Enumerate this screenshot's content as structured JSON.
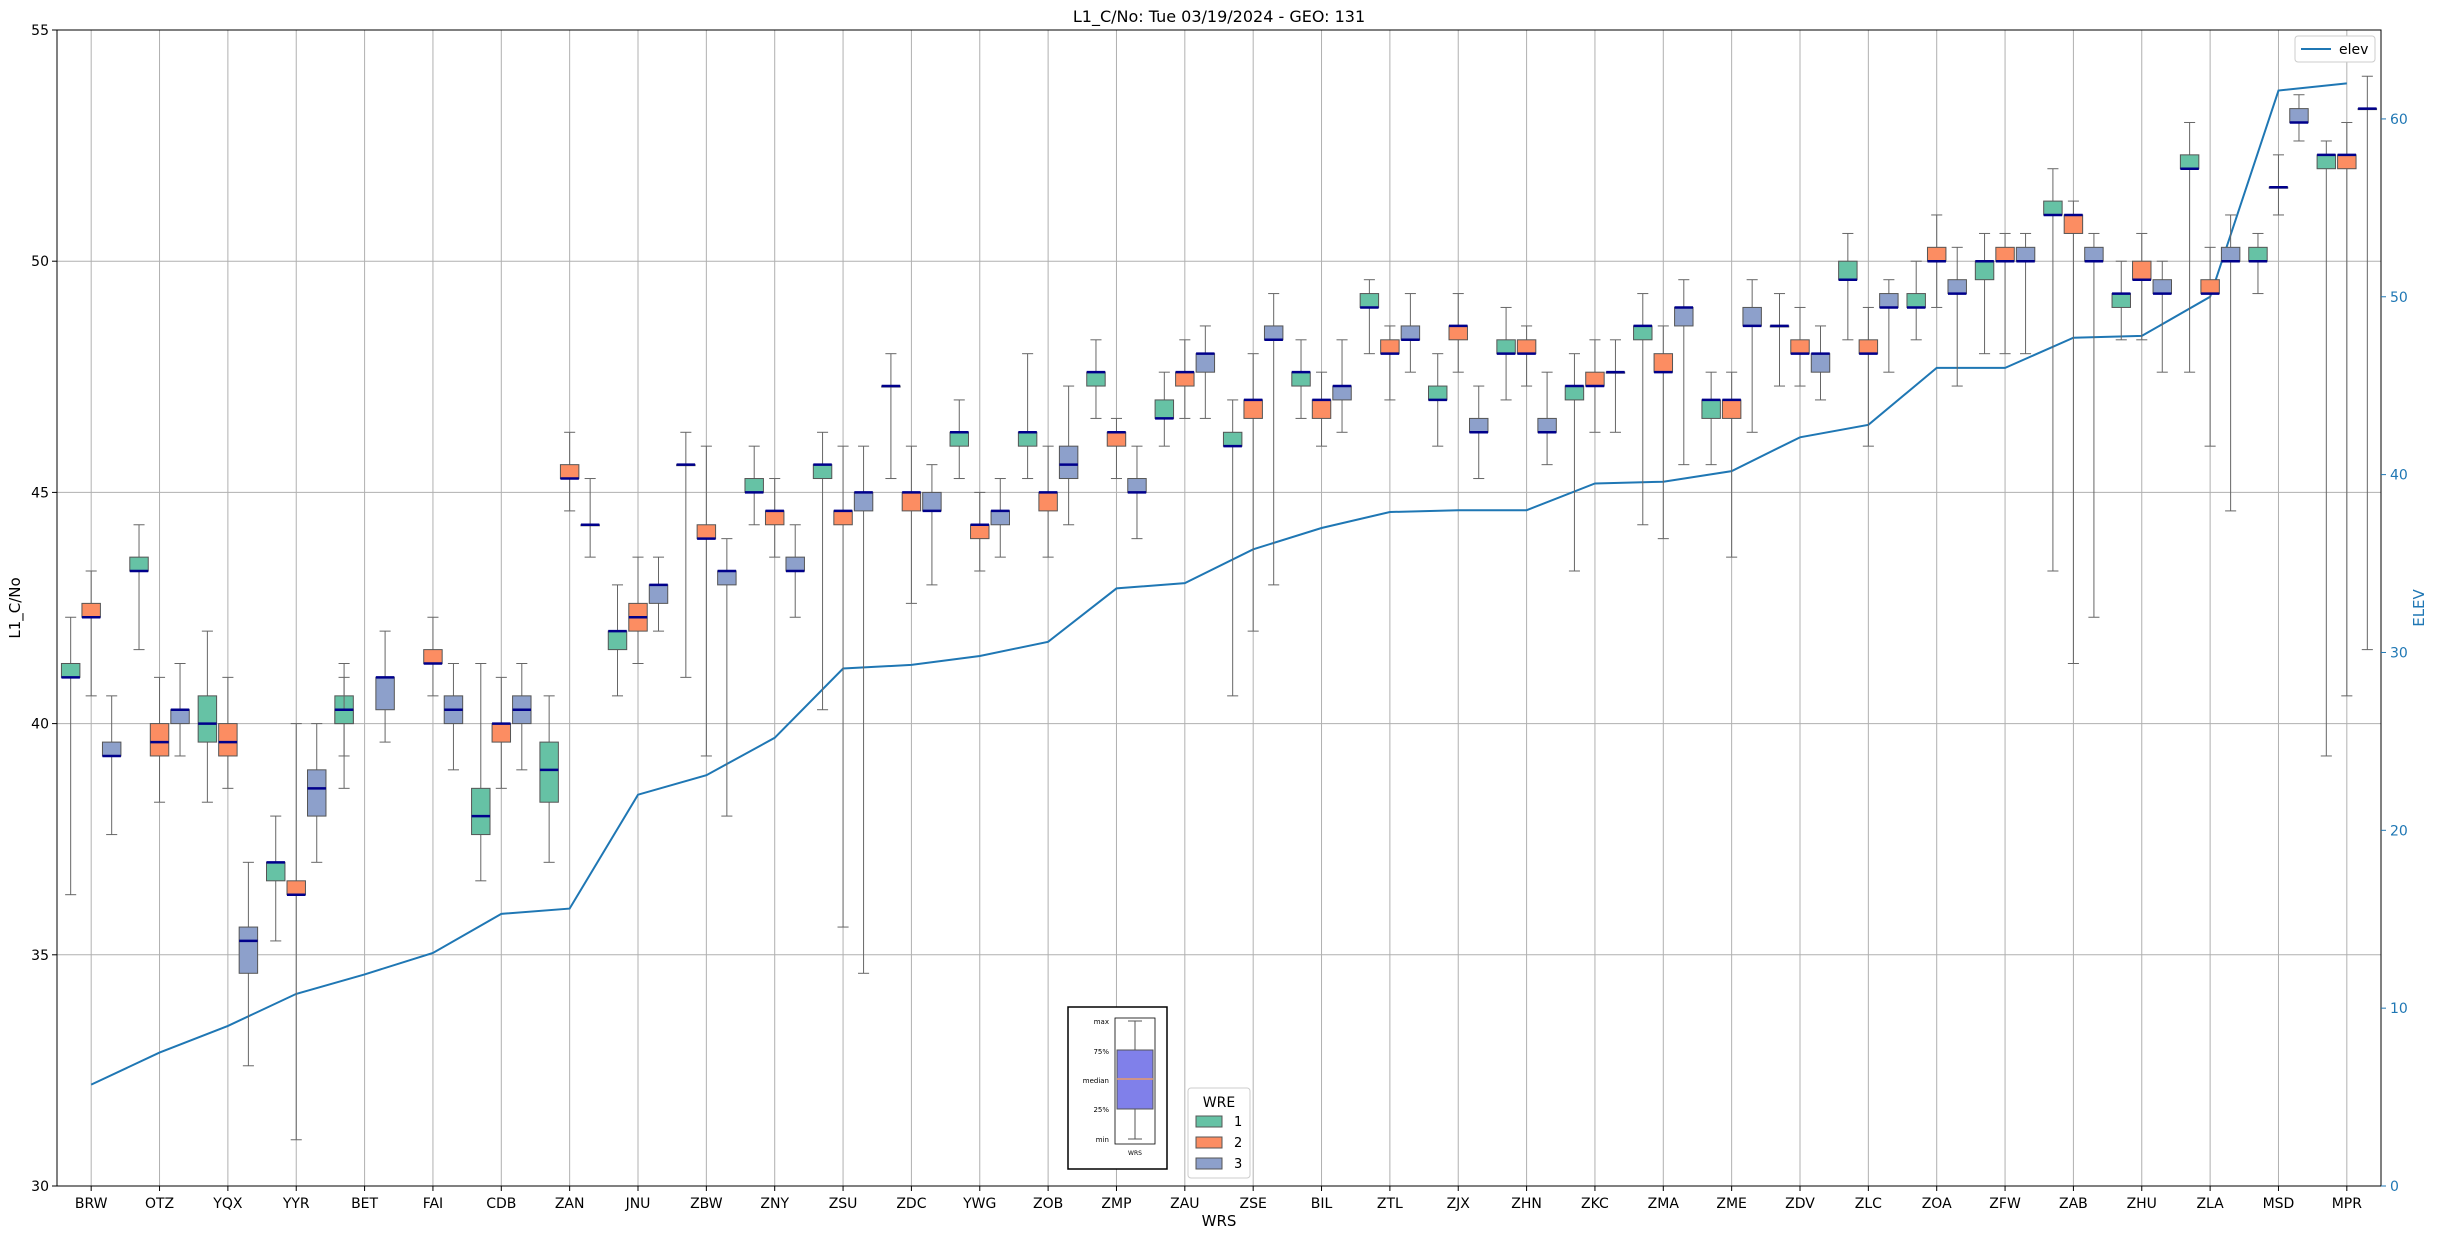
{
  "chart_data": {
    "type": "box",
    "title": "L1_C/No: Tue 03/19/2024 - GEO: 131",
    "xlabel": "WRS",
    "ylabel": "L1_C/No",
    "ylabel_right": "ELEV",
    "ylim": [
      30,
      55
    ],
    "ylim_right": [
      0,
      65
    ],
    "yticks": [
      30,
      35,
      40,
      45,
      50,
      55
    ],
    "yticks_right": [
      0,
      10,
      20,
      30,
      40,
      50,
      60
    ],
    "grid": true,
    "categories": [
      "BRW",
      "OTZ",
      "YQX",
      "YYR",
      "BET",
      "FAI",
      "CDB",
      "ZAN",
      "JNU",
      "ZBW",
      "ZNY",
      "ZSU",
      "ZDC",
      "YWG",
      "ZOB",
      "ZMP",
      "ZAU",
      "ZSE",
      "BIL",
      "ZTL",
      "ZJX",
      "ZHN",
      "ZKC",
      "ZMA",
      "ZME",
      "ZDV",
      "ZLC",
      "ZOA",
      "ZFW",
      "ZAB",
      "ZHU",
      "ZLA",
      "MSD",
      "MPR"
    ],
    "colors": {
      "1": "#66c2a5",
      "2": "#fc8d62",
      "3": "#8da0cb",
      "median": "#00008b",
      "elev": "#1f77b4"
    },
    "boxes": [
      {
        "site": "BRW",
        "wre": 1,
        "min": 36.3,
        "q1": 41.0,
        "med": 41.0,
        "q3": 41.3,
        "max": 42.3
      },
      {
        "site": "BRW",
        "wre": 2,
        "min": 40.6,
        "q1": 42.3,
        "med": 42.3,
        "q3": 42.6,
        "max": 43.3
      },
      {
        "site": "BRW",
        "wre": 3,
        "min": 37.6,
        "q1": 39.3,
        "med": 39.3,
        "q3": 39.6,
        "max": 40.6
      },
      {
        "site": "OTZ",
        "wre": 1,
        "min": 41.6,
        "q1": 43.3,
        "med": 43.3,
        "q3": 43.6,
        "max": 44.3
      },
      {
        "site": "OTZ",
        "wre": 2,
        "min": 38.3,
        "q1": 39.3,
        "med": 39.6,
        "q3": 40.0,
        "max": 41.0
      },
      {
        "site": "OTZ",
        "wre": 3,
        "min": 39.3,
        "q1": 40.0,
        "med": 40.3,
        "q3": 40.3,
        "max": 41.3
      },
      {
        "site": "YQX",
        "wre": 1,
        "min": 38.3,
        "q1": 39.6,
        "med": 40.0,
        "q3": 40.6,
        "max": 42.0
      },
      {
        "site": "YQX",
        "wre": 2,
        "min": 38.6,
        "q1": 39.3,
        "med": 39.6,
        "q3": 40.0,
        "max": 41.0
      },
      {
        "site": "YQX",
        "wre": 3,
        "min": 32.6,
        "q1": 34.6,
        "med": 35.3,
        "q3": 35.6,
        "max": 37.0
      },
      {
        "site": "YYR",
        "wre": 1,
        "min": 35.3,
        "q1": 36.6,
        "med": 37.0,
        "q3": 37.0,
        "max": 38.0
      },
      {
        "site": "YYR",
        "wre": 2,
        "min": 31.0,
        "q1": 36.3,
        "med": 36.3,
        "q3": 36.6,
        "max": 40.0
      },
      {
        "site": "YYR",
        "wre": 3,
        "min": 37.0,
        "q1": 38.0,
        "med": 38.6,
        "q3": 39.0,
        "max": 40.0
      },
      {
        "site": "BET",
        "wre": 1,
        "min": 39.3,
        "q1": 40.0,
        "med": 40.3,
        "q3": 40.6,
        "max": 41.3
      },
      {
        "site": "BET",
        "wre": 3,
        "min": 39.6,
        "q1": 40.3,
        "med": 41.0,
        "q3": 41.0,
        "max": 42.0
      },
      {
        "site": "BET",
        "wre": 1,
        "min": 38.6,
        "q1": 40.0,
        "med": 40.3,
        "q3": 40.3,
        "max": 41.0
      },
      {
        "site": "FAI",
        "wre": 2,
        "min": 40.6,
        "q1": 41.3,
        "med": 41.3,
        "q3": 41.6,
        "max": 42.3
      },
      {
        "site": "FAI",
        "wre": 3,
        "min": 39.0,
        "q1": 40.0,
        "med": 40.3,
        "q3": 40.6,
        "max": 41.3
      },
      {
        "site": "CDB",
        "wre": 1,
        "min": 36.6,
        "q1": 37.6,
        "med": 38.0,
        "q3": 38.6,
        "max": 41.3
      },
      {
        "site": "CDB",
        "wre": 2,
        "min": 38.6,
        "q1": 39.6,
        "med": 40.0,
        "q3": 40.0,
        "max": 41.0
      },
      {
        "site": "CDB",
        "wre": 3,
        "min": 39.0,
        "q1": 40.0,
        "med": 40.3,
        "q3": 40.6,
        "max": 41.3
      },
      {
        "site": "ZAN",
        "wre": 1,
        "min": 37.0,
        "q1": 38.3,
        "med": 39.0,
        "q3": 39.6,
        "max": 40.6
      },
      {
        "site": "ZAN",
        "wre": 2,
        "min": 44.6,
        "q1": 45.3,
        "med": 45.3,
        "q3": 45.6,
        "max": 46.3
      },
      {
        "site": "ZAN",
        "wre": 3,
        "min": 43.6,
        "q1": 44.3,
        "med": 44.3,
        "q3": 44.3,
        "max": 45.3
      },
      {
        "site": "JNU",
        "wre": 1,
        "min": 40.6,
        "q1": 41.6,
        "med": 42.0,
        "q3": 42.0,
        "max": 43.0
      },
      {
        "site": "JNU",
        "wre": 2,
        "min": 41.3,
        "q1": 42.0,
        "med": 42.3,
        "q3": 42.6,
        "max": 43.6
      },
      {
        "site": "JNU",
        "wre": 3,
        "min": 42.0,
        "q1": 42.6,
        "med": 43.0,
        "q3": 43.0,
        "max": 43.6
      },
      {
        "site": "ZBW",
        "wre": 1,
        "min": 41.0,
        "q1": 45.6,
        "med": 45.6,
        "q3": 45.6,
        "max": 46.3
      },
      {
        "site": "ZBW",
        "wre": 2,
        "min": 39.3,
        "q1": 44.0,
        "med": 44.0,
        "q3": 44.3,
        "max": 46.0
      },
      {
        "site": "ZBW",
        "wre": 3,
        "min": 38.0,
        "q1": 43.0,
        "med": 43.3,
        "q3": 43.3,
        "max": 44.0
      },
      {
        "site": "ZNY",
        "wre": 1,
        "min": 44.3,
        "q1": 45.0,
        "med": 45.0,
        "q3": 45.3,
        "max": 46.0
      },
      {
        "site": "ZNY",
        "wre": 2,
        "min": 43.6,
        "q1": 44.3,
        "med": 44.6,
        "q3": 44.6,
        "max": 45.3
      },
      {
        "site": "ZNY",
        "wre": 3,
        "min": 42.3,
        "q1": 43.3,
        "med": 43.3,
        "q3": 43.6,
        "max": 44.3
      },
      {
        "site": "ZSU",
        "wre": 1,
        "min": 40.3,
        "q1": 45.3,
        "med": 45.6,
        "q3": 45.6,
        "max": 46.3
      },
      {
        "site": "ZSU",
        "wre": 2,
        "min": 35.6,
        "q1": 44.3,
        "med": 44.6,
        "q3": 44.6,
        "max": 46.0
      },
      {
        "site": "ZSU",
        "wre": 3,
        "min": 34.6,
        "q1": 44.6,
        "med": 45.0,
        "q3": 45.0,
        "max": 46.0
      },
      {
        "site": "ZDC",
        "wre": 1,
        "min": 45.3,
        "q1": 47.3,
        "med": 47.3,
        "q3": 47.3,
        "max": 48.0
      },
      {
        "site": "ZDC",
        "wre": 2,
        "min": 42.6,
        "q1": 44.6,
        "med": 45.0,
        "q3": 45.0,
        "max": 46.0
      },
      {
        "site": "ZDC",
        "wre": 3,
        "min": 43.0,
        "q1": 44.6,
        "med": 44.6,
        "q3": 45.0,
        "max": 45.6
      },
      {
        "site": "YWG",
        "wre": 1,
        "min": 45.3,
        "q1": 46.0,
        "med": 46.3,
        "q3": 46.3,
        "max": 47.0
      },
      {
        "site": "YWG",
        "wre": 2,
        "min": 43.3,
        "q1": 44.0,
        "med": 44.3,
        "q3": 44.3,
        "max": 45.0
      },
      {
        "site": "YWG",
        "wre": 3,
        "min": 43.6,
        "q1": 44.3,
        "med": 44.6,
        "q3": 44.6,
        "max": 45.3
      },
      {
        "site": "ZOB",
        "wre": 1,
        "min": 45.3,
        "q1": 46.0,
        "med": 46.3,
        "q3": 46.3,
        "max": 48.0
      },
      {
        "site": "ZOB",
        "wre": 2,
        "min": 43.6,
        "q1": 44.6,
        "med": 45.0,
        "q3": 45.0,
        "max": 46.0
      },
      {
        "site": "ZOB",
        "wre": 3,
        "min": 44.3,
        "q1": 45.3,
        "med": 45.6,
        "q3": 46.0,
        "max": 47.3
      },
      {
        "site": "ZMP",
        "wre": 1,
        "min": 46.6,
        "q1": 47.3,
        "med": 47.6,
        "q3": 47.6,
        "max": 48.3
      },
      {
        "site": "ZMP",
        "wre": 2,
        "min": 45.3,
        "q1": 46.0,
        "med": 46.3,
        "q3": 46.3,
        "max": 46.6
      },
      {
        "site": "ZMP",
        "wre": 3,
        "min": 44.0,
        "q1": 45.0,
        "med": 45.0,
        "q3": 45.3,
        "max": 46.0
      },
      {
        "site": "ZAU",
        "wre": 1,
        "min": 46.0,
        "q1": 46.6,
        "med": 46.6,
        "q3": 47.0,
        "max": 47.6
      },
      {
        "site": "ZAU",
        "wre": 2,
        "min": 46.6,
        "q1": 47.3,
        "med": 47.6,
        "q3": 47.6,
        "max": 48.3
      },
      {
        "site": "ZAU",
        "wre": 3,
        "min": 46.6,
        "q1": 47.6,
        "med": 48.0,
        "q3": 48.0,
        "max": 48.6
      },
      {
        "site": "ZSE",
        "wre": 1,
        "min": 40.6,
        "q1": 46.0,
        "med": 46.0,
        "q3": 46.3,
        "max": 47.0
      },
      {
        "site": "ZSE",
        "wre": 2,
        "min": 42.0,
        "q1": 46.6,
        "med": 47.0,
        "q3": 47.0,
        "max": 48.0
      },
      {
        "site": "ZSE",
        "wre": 3,
        "min": 43.0,
        "q1": 48.3,
        "med": 48.3,
        "q3": 48.6,
        "max": 49.3
      },
      {
        "site": "BIL",
        "wre": 1,
        "min": 46.6,
        "q1": 47.3,
        "med": 47.6,
        "q3": 47.6,
        "max": 48.3
      },
      {
        "site": "BIL",
        "wre": 2,
        "min": 46.0,
        "q1": 46.6,
        "med": 47.0,
        "q3": 47.0,
        "max": 47.6
      },
      {
        "site": "BIL",
        "wre": 3,
        "min": 46.3,
        "q1": 47.0,
        "med": 47.3,
        "q3": 47.3,
        "max": 48.3
      },
      {
        "site": "ZTL",
        "wre": 1,
        "min": 48.0,
        "q1": 49.0,
        "med": 49.0,
        "q3": 49.3,
        "max": 49.6
      },
      {
        "site": "ZTL",
        "wre": 2,
        "min": 47.0,
        "q1": 48.0,
        "med": 48.0,
        "q3": 48.3,
        "max": 48.6
      },
      {
        "site": "ZTL",
        "wre": 3,
        "min": 47.6,
        "q1": 48.3,
        "med": 48.3,
        "q3": 48.6,
        "max": 49.3
      },
      {
        "site": "ZJX",
        "wre": 1,
        "min": 46.0,
        "q1": 47.0,
        "med": 47.0,
        "q3": 47.3,
        "max": 48.0
      },
      {
        "site": "ZJX",
        "wre": 2,
        "min": 47.6,
        "q1": 48.3,
        "med": 48.6,
        "q3": 48.6,
        "max": 49.3
      },
      {
        "site": "ZJX",
        "wre": 3,
        "min": 45.3,
        "q1": 46.3,
        "med": 46.3,
        "q3": 46.6,
        "max": 47.3
      },
      {
        "site": "ZHN",
        "wre": 1,
        "min": 47.0,
        "q1": 48.0,
        "med": 48.0,
        "q3": 48.3,
        "max": 49.0
      },
      {
        "site": "ZHN",
        "wre": 2,
        "min": 47.3,
        "q1": 48.0,
        "med": 48.0,
        "q3": 48.3,
        "max": 48.6
      },
      {
        "site": "ZHN",
        "wre": 3,
        "min": 45.6,
        "q1": 46.3,
        "med": 46.3,
        "q3": 46.6,
        "max": 47.6
      },
      {
        "site": "ZKC",
        "wre": 1,
        "min": 43.3,
        "q1": 47.0,
        "med": 47.3,
        "q3": 47.3,
        "max": 48.0
      },
      {
        "site": "ZKC",
        "wre": 2,
        "min": 46.3,
        "q1": 47.3,
        "med": 47.3,
        "q3": 47.6,
        "max": 48.3
      },
      {
        "site": "ZKC",
        "wre": 3,
        "min": 46.3,
        "q1": 47.6,
        "med": 47.6,
        "q3": 47.6,
        "max": 48.3
      },
      {
        "site": "ZMA",
        "wre": 1,
        "min": 44.3,
        "q1": 48.3,
        "med": 48.6,
        "q3": 48.6,
        "max": 49.3
      },
      {
        "site": "ZMA",
        "wre": 2,
        "min": 44.0,
        "q1": 47.6,
        "med": 47.6,
        "q3": 48.0,
        "max": 48.6
      },
      {
        "site": "ZMA",
        "wre": 3,
        "min": 45.6,
        "q1": 48.6,
        "med": 49.0,
        "q3": 49.0,
        "max": 49.6
      },
      {
        "site": "ZME",
        "wre": 1,
        "min": 45.6,
        "q1": 46.6,
        "med": 47.0,
        "q3": 47.0,
        "max": 47.6
      },
      {
        "site": "ZME",
        "wre": 2,
        "min": 43.6,
        "q1": 46.6,
        "med": 47.0,
        "q3": 47.0,
        "max": 47.6
      },
      {
        "site": "ZME",
        "wre": 3,
        "min": 46.3,
        "q1": 48.6,
        "med": 48.6,
        "q3": 49.0,
        "max": 49.6
      },
      {
        "site": "ZDV",
        "wre": 1,
        "min": 47.3,
        "q1": 48.6,
        "med": 48.6,
        "q3": 48.6,
        "max": 49.3
      },
      {
        "site": "ZDV",
        "wre": 2,
        "min": 47.3,
        "q1": 48.0,
        "med": 48.0,
        "q3": 48.3,
        "max": 49.0
      },
      {
        "site": "ZDV",
        "wre": 3,
        "min": 47.0,
        "q1": 47.6,
        "med": 48.0,
        "q3": 48.0,
        "max": 48.6
      },
      {
        "site": "ZLC",
        "wre": 1,
        "min": 48.3,
        "q1": 49.6,
        "med": 49.6,
        "q3": 50.0,
        "max": 50.6
      },
      {
        "site": "ZLC",
        "wre": 2,
        "min": 46.0,
        "q1": 48.0,
        "med": 48.0,
        "q3": 48.3,
        "max": 49.0
      },
      {
        "site": "ZLC",
        "wre": 3,
        "min": 47.6,
        "q1": 49.0,
        "med": 49.0,
        "q3": 49.3,
        "max": 49.6
      },
      {
        "site": "ZOA",
        "wre": 1,
        "min": 48.3,
        "q1": 49.0,
        "med": 49.0,
        "q3": 49.3,
        "max": 50.0
      },
      {
        "site": "ZOA",
        "wre": 2,
        "min": 49.0,
        "q1": 50.0,
        "med": 50.0,
        "q3": 50.3,
        "max": 51.0
      },
      {
        "site": "ZOA",
        "wre": 3,
        "min": 47.3,
        "q1": 49.3,
        "med": 49.3,
        "q3": 49.6,
        "max": 50.3
      },
      {
        "site": "ZFW",
        "wre": 1,
        "min": 48.0,
        "q1": 49.6,
        "med": 50.0,
        "q3": 50.0,
        "max": 50.6
      },
      {
        "site": "ZFW",
        "wre": 2,
        "min": 48.0,
        "q1": 50.0,
        "med": 50.0,
        "q3": 50.3,
        "max": 50.6
      },
      {
        "site": "ZFW",
        "wre": 3,
        "min": 48.0,
        "q1": 50.0,
        "med": 50.0,
        "q3": 50.3,
        "max": 50.6
      },
      {
        "site": "ZAB",
        "wre": 1,
        "min": 43.3,
        "q1": 51.0,
        "med": 51.0,
        "q3": 51.3,
        "max": 52.0
      },
      {
        "site": "ZAB",
        "wre": 2,
        "min": 41.3,
        "q1": 50.6,
        "med": 51.0,
        "q3": 51.0,
        "max": 51.3
      },
      {
        "site": "ZAB",
        "wre": 3,
        "min": 42.3,
        "q1": 50.0,
        "med": 50.0,
        "q3": 50.3,
        "max": 50.6
      },
      {
        "site": "ZHU",
        "wre": 1,
        "min": 48.3,
        "q1": 49.0,
        "med": 49.3,
        "q3": 49.3,
        "max": 50.0
      },
      {
        "site": "ZHU",
        "wre": 2,
        "min": 48.3,
        "q1": 49.6,
        "med": 49.6,
        "q3": 50.0,
        "max": 50.6
      },
      {
        "site": "ZHU",
        "wre": 3,
        "min": 47.6,
        "q1": 49.3,
        "med": 49.3,
        "q3": 49.6,
        "max": 50.0
      },
      {
        "site": "ZLA",
        "wre": 1,
        "min": 47.6,
        "q1": 52.0,
        "med": 52.0,
        "q3": 52.3,
        "max": 53.0
      },
      {
        "site": "ZLA",
        "wre": 2,
        "min": 46.0,
        "q1": 49.3,
        "med": 49.3,
        "q3": 49.6,
        "max": 50.3
      },
      {
        "site": "ZLA",
        "wre": 3,
        "min": 44.6,
        "q1": 50.0,
        "med": 50.0,
        "q3": 50.3,
        "max": 51.0
      },
      {
        "site": "MSD",
        "wre": 1,
        "min": 49.3,
        "q1": 50.0,
        "med": 50.0,
        "q3": 50.3,
        "max": 50.6
      },
      {
        "site": "MSD",
        "wre": 2,
        "min": 51.0,
        "q1": 51.6,
        "med": 51.6,
        "q3": 51.6,
        "max": 52.3
      },
      {
        "site": "MSD",
        "wre": 3,
        "min": 52.6,
        "q1": 53.0,
        "med": 53.0,
        "q3": 53.3,
        "max": 53.6
      },
      {
        "site": "MPR",
        "wre": 1,
        "min": 39.3,
        "q1": 52.0,
        "med": 52.3,
        "q3": 52.3,
        "max": 52.6
      },
      {
        "site": "MPR",
        "wre": 2,
        "min": 40.6,
        "q1": 52.0,
        "med": 52.3,
        "q3": 52.3,
        "max": 53.0
      },
      {
        "site": "MPR",
        "wre": 3,
        "min": 41.6,
        "q1": 53.3,
        "med": 53.3,
        "q3": 53.3,
        "max": 54.0
      }
    ],
    "elev_series": {
      "name": "elev",
      "x": [
        "BRW",
        "OTZ",
        "YQX",
        "YYR",
        "BET",
        "FAI",
        "CDB",
        "ZAN",
        "JNU",
        "ZBW",
        "ZNY",
        "ZSU",
        "ZDC",
        "YWG",
        "ZOB",
        "ZMP",
        "ZAU",
        "ZSE",
        "BIL",
        "ZTL",
        "ZJX",
        "ZHN",
        "ZKC",
        "ZMA",
        "ZME",
        "ZDV",
        "ZLC",
        "ZOA",
        "ZFW",
        "ZAB",
        "ZHU",
        "ZLA",
        "MSD",
        "MPR"
      ],
      "values": [
        5.7,
        7.5,
        9.0,
        10.8,
        11.9,
        13.1,
        15.3,
        15.6,
        22.0,
        23.1,
        25.2,
        29.1,
        29.3,
        29.8,
        30.6,
        33.6,
        33.9,
        35.8,
        37.0,
        37.9,
        38.0,
        38.0,
        39.5,
        39.6,
        40.2,
        42.1,
        42.8,
        46.0,
        46.0,
        47.7,
        47.8,
        50.0,
        61.6,
        62.0
      ]
    },
    "legend_elev": {
      "label": "elev",
      "placement": "top-right"
    },
    "legend_wre": {
      "title": "WRE",
      "entries": [
        "1",
        "2",
        "3"
      ],
      "placement": "bottom-center"
    },
    "key_inset": {
      "labels": [
        "max",
        "75%",
        "median",
        "25%",
        "min"
      ],
      "xlabel": "WRS"
    }
  }
}
